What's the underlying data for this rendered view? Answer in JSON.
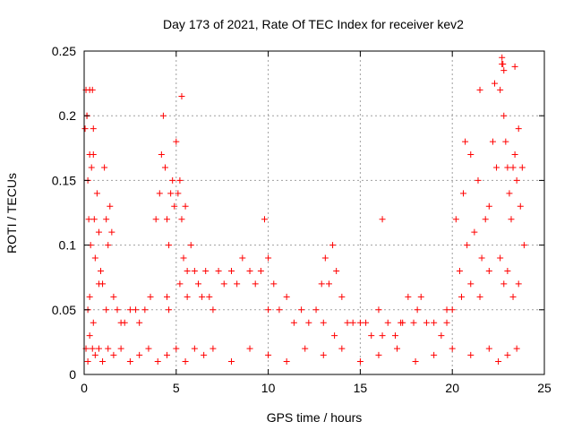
{
  "chart_data": {
    "type": "scatter",
    "title": "Day 173 of 2021, Rate Of TEC Index for receiver kev2",
    "xlabel": "GPS time / hours",
    "ylabel": "ROTI / TECUs",
    "xlim": [
      0,
      25
    ],
    "ylim": [
      0,
      0.25
    ],
    "xticks": [
      0,
      5,
      10,
      15,
      20,
      25
    ],
    "yticks": [
      0,
      0.05,
      0.1,
      0.15,
      0.2,
      0.25
    ],
    "xtick_labels": [
      "0",
      "5",
      "10",
      "15",
      "20",
      "25"
    ],
    "ytick_labels": [
      "0",
      "0.05",
      "0.1",
      "0.15",
      "0.2",
      "0.25"
    ],
    "grid": true,
    "marker": "plus",
    "color": "#ff0000",
    "series": [
      {
        "x": [
          0.05,
          0.1,
          0.15,
          0.2,
          0.25,
          0.3,
          0.35,
          0.4,
          0.45,
          0.5,
          0.55,
          0.6,
          0.7,
          0.8,
          0.9,
          1.0,
          1.1,
          1.2,
          1.3,
          1.4,
          1.5,
          1.6,
          1.8,
          2.0,
          2.2,
          2.5,
          2.8,
          3.0,
          3.3,
          3.6,
          3.9,
          4.1,
          4.2,
          4.3,
          4.4,
          4.5,
          4.6,
          4.7,
          4.8,
          4.9,
          5.0,
          5.1,
          5.2,
          5.3,
          5.4,
          5.5,
          5.6,
          5.8,
          6.0,
          6.2,
          6.4,
          6.6,
          6.8,
          7.0,
          7.3,
          7.6,
          8.0,
          8.3,
          8.6,
          9.0,
          9.3,
          9.6,
          9.8,
          10.0,
          10.3,
          10.6,
          11.0,
          11.4,
          11.8,
          12.2,
          12.6,
          12.9,
          13.1,
          13.3,
          13.5,
          13.7,
          14.0,
          14.3,
          14.6,
          15.0,
          15.3,
          15.6,
          16.0,
          16.2,
          16.5,
          16.9,
          17.3,
          17.6,
          17.9,
          18.1,
          18.3,
          18.6,
          19.0,
          19.4,
          19.7,
          20.0,
          20.2,
          20.4,
          20.6,
          20.8,
          21.0,
          21.2,
          21.4,
          21.6,
          21.8,
          22.0,
          22.2,
          22.4,
          22.6,
          22.7,
          22.8,
          22.9,
          23.0,
          23.1,
          23.2,
          23.3,
          23.4,
          23.5,
          23.6,
          23.7,
          23.8,
          23.9,
          0.1,
          0.2,
          0.3,
          0.45,
          0.6,
          0.8,
          1.0,
          1.3,
          1.6,
          2.0,
          2.5,
          3.0,
          3.5,
          4.0,
          4.5,
          5.0,
          5.5,
          6.0,
          6.5,
          7.0,
          8.0,
          9.0,
          10.0,
          11.0,
          12.0,
          13.0,
          14.0,
          15.0,
          16.0,
          17.0,
          18.0,
          19.0,
          20.0,
          21.0,
          22.0,
          22.5,
          23.0,
          23.5,
          0.2,
          0.3,
          0.5,
          0.8,
          1.2,
          4.5,
          4.6,
          5.2,
          5.6,
          10.0,
          13.0,
          13.6,
          16.2,
          17.2,
          19.7,
          20.5,
          21.0,
          21.5,
          22.0,
          22.6,
          22.8,
          23.0,
          23.3,
          23.6,
          0.15,
          0.3,
          0.5,
          5.3,
          20.7,
          21.5,
          22.3,
          22.7,
          22.75,
          22.8,
          23.4
        ],
        "y": [
          0.19,
          0.22,
          0.2,
          0.15,
          0.12,
          0.17,
          0.1,
          0.16,
          0.22,
          0.19,
          0.12,
          0.09,
          0.14,
          0.11,
          0.08,
          0.07,
          0.16,
          0.12,
          0.1,
          0.13,
          0.11,
          0.06,
          0.05,
          0.04,
          0.04,
          0.05,
          0.05,
          0.04,
          0.05,
          0.06,
          0.12,
          0.14,
          0.17,
          0.2,
          0.16,
          0.12,
          0.1,
          0.14,
          0.15,
          0.13,
          0.18,
          0.14,
          0.15,
          0.12,
          0.09,
          0.13,
          0.08,
          0.1,
          0.08,
          0.07,
          0.06,
          0.08,
          0.06,
          0.05,
          0.08,
          0.07,
          0.08,
          0.07,
          0.09,
          0.08,
          0.07,
          0.08,
          0.12,
          0.09,
          0.07,
          0.05,
          0.06,
          0.04,
          0.05,
          0.04,
          0.05,
          0.07,
          0.09,
          0.07,
          0.1,
          0.08,
          0.06,
          0.04,
          0.04,
          0.04,
          0.04,
          0.03,
          0.05,
          0.12,
          0.04,
          0.03,
          0.04,
          0.06,
          0.04,
          0.05,
          0.06,
          0.04,
          0.04,
          0.03,
          0.05,
          0.05,
          0.12,
          0.08,
          0.14,
          0.1,
          0.17,
          0.11,
          0.15,
          0.09,
          0.12,
          0.13,
          0.18,
          0.16,
          0.22,
          0.24,
          0.2,
          0.18,
          0.16,
          0.14,
          0.12,
          0.16,
          0.17,
          0.15,
          0.19,
          0.13,
          0.16,
          0.1,
          0.02,
          0.01,
          0.03,
          0.02,
          0.015,
          0.02,
          0.01,
          0.02,
          0.015,
          0.02,
          0.01,
          0.015,
          0.02,
          0.01,
          0.015,
          0.02,
          0.01,
          0.02,
          0.015,
          0.02,
          0.01,
          0.02,
          0.015,
          0.01,
          0.02,
          0.015,
          0.02,
          0.01,
          0.015,
          0.02,
          0.01,
          0.015,
          0.02,
          0.015,
          0.02,
          0.01,
          0.015,
          0.02,
          0.05,
          0.06,
          0.04,
          0.07,
          0.05,
          0.06,
          0.05,
          0.07,
          0.06,
          0.05,
          0.04,
          0.03,
          0.03,
          0.04,
          0.04,
          0.06,
          0.07,
          0.06,
          0.08,
          0.09,
          0.07,
          0.08,
          0.06,
          0.07,
          0.2,
          0.22,
          0.17,
          0.215,
          0.18,
          0.22,
          0.225,
          0.245,
          0.24,
          0.235,
          0.238
        ]
      }
    ]
  }
}
